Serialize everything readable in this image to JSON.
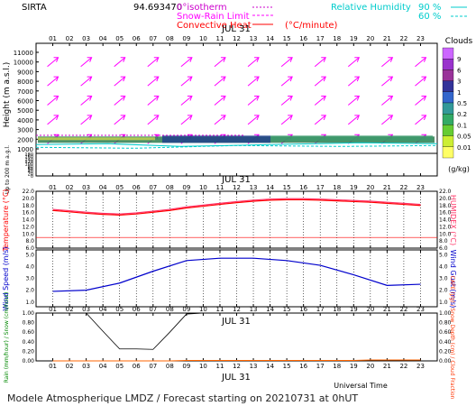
{
  "header": {
    "station": "SIRTA",
    "coords": "94.693470",
    "legend_isotherm": "0°isotherm",
    "legend_snow": "Snow-Rain Limit",
    "legend_conv": "Convective Heat",
    "legend_conv_unit": "(°C/minute)",
    "legend_rh": "Relative Humidity",
    "rh_90": "90 %",
    "rh_60": "60 %"
  },
  "footer": {
    "title": "Modele Atmospherique LMDZ / Forecast starting on 20210731 at 0hUT",
    "ut_label": "Universal Time"
  },
  "date_label": "JUL 31",
  "hours": [
    "01",
    "02",
    "03",
    "04",
    "05",
    "06",
    "07",
    "08",
    "09",
    "10",
    "11",
    "12",
    "13",
    "14",
    "15",
    "16",
    "17",
    "18",
    "19",
    "20",
    "21",
    "22",
    "23"
  ],
  "colors": {
    "wind_arrow": "#ff00ff",
    "temp": "#ff0000",
    "humidex": "#ff3366",
    "wind_speed": "#0000cc",
    "rain": "#000000",
    "cape": "#ff6600",
    "rh": "#00cccc"
  },
  "chart_data": [
    {
      "type": "heatmap",
      "name": "clouds",
      "ylabel": "Height (m a.s.l.)",
      "ylabel_low": "Up to 200 m a.g.l.",
      "yticks_upper": [
        1000,
        2000,
        3000,
        4000,
        5000,
        6000,
        7000,
        8000,
        9000,
        10000,
        11000
      ],
      "yticks_lower": [
        0,
        20,
        40,
        60,
        80,
        100,
        120,
        140,
        160,
        180
      ],
      "colorbar_title": "Clouds",
      "colorbar_unit": "(g/kg)",
      "colorbar_ticks": [
        "9",
        "6",
        "3",
        "1",
        "0.5",
        "0.2",
        "0.1",
        "0.05",
        "0.01"
      ],
      "wind_arrow_rows": [
        2000,
        4000,
        6000,
        8000,
        10000
      ]
    },
    {
      "type": "line",
      "name": "temperature",
      "ylabel_left": "Temperature (°C)",
      "ylabel_right": "HUMIDEX (°C)",
      "yticks": [
        "6.0",
        "8.0",
        "10.0",
        "12.0",
        "14.0",
        "16.0",
        "18.0",
        "20.0",
        "22.0"
      ],
      "ylim": [
        6,
        22
      ],
      "x": [
        1,
        2,
        3,
        4,
        5,
        6,
        7,
        8,
        9,
        10,
        11,
        12,
        13,
        14,
        15,
        16,
        17,
        18,
        19,
        20,
        21,
        22,
        23
      ],
      "series": [
        {
          "values": [
            16.6,
            16.2,
            15.8,
            15.5,
            15.3,
            15.6,
            16.1,
            16.6,
            17.3,
            17.8,
            18.3,
            18.8,
            19.2,
            19.5,
            19.6,
            19.6,
            19.5,
            19.3,
            19.1,
            18.9,
            18.6,
            18.3,
            18.0
          ]
        },
        {
          "values": [
            16.9,
            16.5,
            16.1,
            15.8,
            15.6,
            15.9,
            16.4,
            16.9,
            17.6,
            18.1,
            18.6,
            19.1,
            19.5,
            19.8,
            19.9,
            19.9,
            19.8,
            19.6,
            19.4,
            19.2,
            18.9,
            18.6,
            18.3
          ]
        }
      ],
      "reference_line": 9.0
    },
    {
      "type": "line",
      "name": "wind",
      "ylabel_left": "Wind Speed (m/s)",
      "ylabel_right": "Wind Gust (m/s)",
      "yticks": [
        "1.0",
        "2.0",
        "3.0",
        "4.0",
        "5.0"
      ],
      "ylim": [
        1,
        5
      ],
      "x": [
        1,
        3,
        5,
        7,
        9,
        11,
        13,
        15,
        17,
        19,
        21,
        23
      ],
      "series": [
        {
          "values": [
            1.9,
            2.0,
            2.6,
            3.6,
            4.5,
            4.7,
            4.7,
            4.5,
            4.1,
            3.3,
            2.4,
            2.5
          ]
        }
      ]
    },
    {
      "type": "line",
      "name": "precip",
      "ylabel_left": "Rain (mm/hour) / Snow (cm/hour)",
      "ylabel_right": "CAPE (J/g) / Snow Depth (cm) / Cloud Fraction",
      "yticks": [
        "0.00",
        "0.20",
        "0.40",
        "0.60",
        "0.80",
        "1.00"
      ],
      "ylim": [
        0,
        1
      ],
      "x": [
        1,
        2,
        3,
        4,
        5,
        6,
        7,
        8,
        9,
        10,
        11,
        12,
        13,
        14,
        15,
        16,
        17,
        18,
        19,
        20,
        21,
        22,
        23
      ],
      "series": [
        {
          "values": [
            1.0,
            1.0,
            1.0,
            0.62,
            0.25,
            0.25,
            0.24,
            0.6,
            0.98,
            1.0,
            1.0,
            1.0,
            1.0,
            1.0,
            1.0,
            1.0,
            1.0,
            1.0,
            1.0,
            1.0,
            1.0,
            1.0,
            1.0
          ]
        },
        {
          "values": [
            0.0,
            0.0,
            0.0,
            0.0,
            0.0,
            0.0,
            0.0,
            0.0,
            0.01,
            0.01,
            0.01,
            0.01,
            0.01,
            0.01,
            0.01,
            0.01,
            0.01,
            0.01,
            0.01,
            0.02,
            0.02,
            0.02,
            0.02
          ]
        }
      ]
    }
  ]
}
